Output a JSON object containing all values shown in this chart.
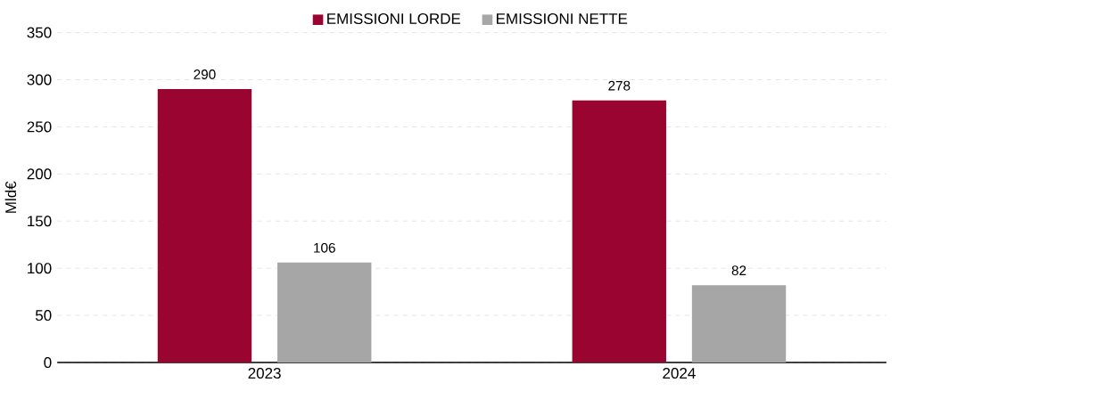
{
  "chart_data": {
    "type": "bar",
    "categories": [
      "2023",
      "2024"
    ],
    "ylabel": "Mld€",
    "series": [
      {
        "name": "EMISSIONI LORDE",
        "color": "#990530",
        "values": [
          290,
          278
        ]
      },
      {
        "name": "EMISSIONI NETTE",
        "color": "#a6a6a6",
        "values": [
          106,
          82
        ]
      }
    ],
    "ylim": [
      0,
      350
    ],
    "yticks": [
      0,
      50,
      100,
      150,
      200,
      250,
      300,
      350
    ],
    "grid": "y",
    "legend": "top",
    "data_labels": true
  }
}
